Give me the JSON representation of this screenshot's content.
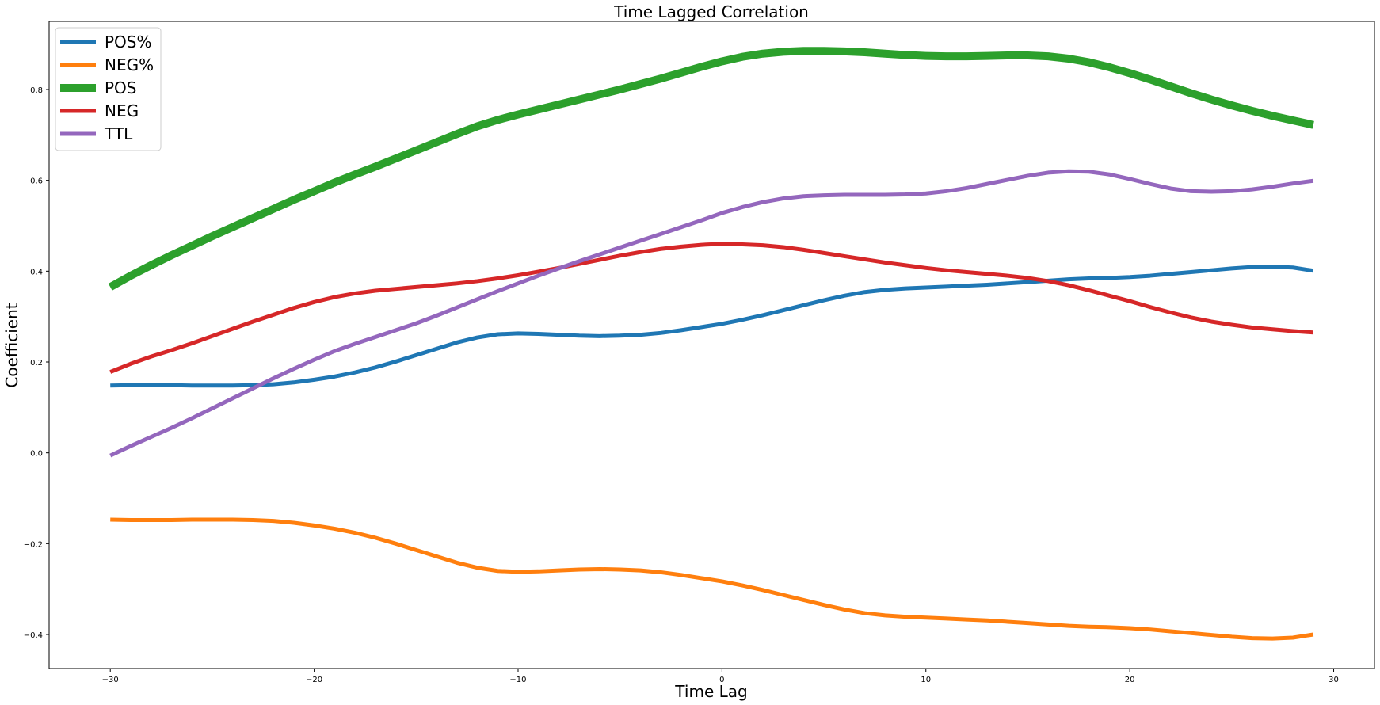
{
  "chart_data": {
    "type": "line",
    "title": "Time Lagged Correlation",
    "xlabel": "Time Lag",
    "ylabel": "Coefficient",
    "xlim": [
      -33,
      32
    ],
    "ylim": [
      -0.475,
      0.95
    ],
    "xticks": [
      -30,
      -20,
      -10,
      0,
      10,
      20,
      30
    ],
    "xtick_labels": [
      "−30",
      "−20",
      "−10",
      "0",
      "10",
      "20",
      "30"
    ],
    "yticks": [
      -0.4,
      -0.2,
      0.0,
      0.2,
      0.4,
      0.6,
      0.8
    ],
    "ytick_labels": [
      "−0.4",
      "−0.2",
      "0.0",
      "0.2",
      "0.4",
      "0.6",
      "0.8"
    ],
    "grid": false,
    "legend_position": "top-left",
    "x": [
      -30,
      -29,
      -28,
      -27,
      -26,
      -25,
      -24,
      -23,
      -22,
      -21,
      -20,
      -19,
      -18,
      -17,
      -16,
      -15,
      -14,
      -13,
      -12,
      -11,
      -10,
      -9,
      -8,
      -7,
      -6,
      -5,
      -4,
      -3,
      -2,
      -1,
      0,
      1,
      2,
      3,
      4,
      5,
      6,
      7,
      8,
      9,
      10,
      11,
      12,
      13,
      14,
      15,
      16,
      17,
      18,
      19,
      20,
      21,
      22,
      23,
      24,
      25,
      26,
      27,
      28,
      29
    ],
    "series": [
      {
        "name": "POS%",
        "color": "#1f77b4",
        "width": 5,
        "values": [
          0.148,
          0.149,
          0.149,
          0.149,
          0.148,
          0.148,
          0.148,
          0.149,
          0.151,
          0.155,
          0.161,
          0.168,
          0.177,
          0.188,
          0.201,
          0.215,
          0.229,
          0.243,
          0.254,
          0.261,
          0.263,
          0.262,
          0.26,
          0.258,
          0.257,
          0.258,
          0.26,
          0.264,
          0.27,
          0.277,
          0.284,
          0.293,
          0.303,
          0.314,
          0.325,
          0.336,
          0.346,
          0.354,
          0.359,
          0.362,
          0.364,
          0.366,
          0.368,
          0.37,
          0.373,
          0.376,
          0.379,
          0.382,
          0.384,
          0.385,
          0.387,
          0.39,
          0.394,
          0.398,
          0.402,
          0.406,
          0.409,
          0.41,
          0.408,
          0.401
        ]
      },
      {
        "name": "NEG%",
        "color": "#ff7f0e",
        "width": 5,
        "values": [
          -0.147,
          -0.148,
          -0.148,
          -0.148,
          -0.147,
          -0.147,
          -0.147,
          -0.148,
          -0.15,
          -0.154,
          -0.16,
          -0.167,
          -0.176,
          -0.187,
          -0.2,
          -0.214,
          -0.228,
          -0.242,
          -0.253,
          -0.26,
          -0.262,
          -0.261,
          -0.259,
          -0.257,
          -0.256,
          -0.257,
          -0.259,
          -0.263,
          -0.269,
          -0.276,
          -0.283,
          -0.292,
          -0.302,
          -0.313,
          -0.324,
          -0.335,
          -0.345,
          -0.353,
          -0.358,
          -0.361,
          -0.363,
          -0.365,
          -0.367,
          -0.369,
          -0.372,
          -0.375,
          -0.378,
          -0.381,
          -0.383,
          -0.384,
          -0.386,
          -0.389,
          -0.393,
          -0.397,
          -0.401,
          -0.405,
          -0.408,
          -0.409,
          -0.407,
          -0.4
        ]
      },
      {
        "name": "POS",
        "color": "#2ca02c",
        "width": 10,
        "values": [
          0.365,
          0.39,
          0.413,
          0.435,
          0.456,
          0.477,
          0.497,
          0.517,
          0.537,
          0.557,
          0.576,
          0.595,
          0.613,
          0.63,
          0.648,
          0.666,
          0.684,
          0.702,
          0.719,
          0.733,
          0.745,
          0.756,
          0.767,
          0.778,
          0.789,
          0.8,
          0.812,
          0.824,
          0.837,
          0.85,
          0.862,
          0.872,
          0.879,
          0.883,
          0.885,
          0.885,
          0.884,
          0.882,
          0.879,
          0.876,
          0.874,
          0.873,
          0.873,
          0.874,
          0.875,
          0.875,
          0.873,
          0.868,
          0.86,
          0.849,
          0.836,
          0.822,
          0.807,
          0.792,
          0.778,
          0.765,
          0.753,
          0.742,
          0.732,
          0.722
        ]
      },
      {
        "name": "NEG",
        "color": "#d62728",
        "width": 5,
        "values": [
          0.178,
          0.196,
          0.212,
          0.226,
          0.241,
          0.257,
          0.273,
          0.289,
          0.304,
          0.319,
          0.332,
          0.343,
          0.351,
          0.357,
          0.361,
          0.365,
          0.369,
          0.373,
          0.378,
          0.384,
          0.391,
          0.399,
          0.407,
          0.416,
          0.425,
          0.434,
          0.442,
          0.449,
          0.454,
          0.458,
          0.46,
          0.459,
          0.457,
          0.453,
          0.447,
          0.44,
          0.433,
          0.426,
          0.419,
          0.413,
          0.407,
          0.402,
          0.398,
          0.394,
          0.39,
          0.385,
          0.378,
          0.369,
          0.358,
          0.346,
          0.334,
          0.321,
          0.309,
          0.298,
          0.289,
          0.282,
          0.276,
          0.272,
          0.268,
          0.265
        ]
      },
      {
        "name": "TTL",
        "color": "#9467bd",
        "width": 5,
        "values": [
          -0.006,
          0.015,
          0.035,
          0.055,
          0.076,
          0.098,
          0.12,
          0.142,
          0.164,
          0.185,
          0.205,
          0.224,
          0.24,
          0.255,
          0.27,
          0.285,
          0.302,
          0.32,
          0.338,
          0.356,
          0.373,
          0.39,
          0.406,
          0.422,
          0.437,
          0.452,
          0.467,
          0.482,
          0.497,
          0.512,
          0.528,
          0.541,
          0.552,
          0.56,
          0.565,
          0.567,
          0.568,
          0.568,
          0.568,
          0.569,
          0.571,
          0.576,
          0.583,
          0.592,
          0.601,
          0.61,
          0.617,
          0.62,
          0.619,
          0.613,
          0.603,
          0.592,
          0.582,
          0.576,
          0.575,
          0.576,
          0.58,
          0.586,
          0.593,
          0.599
        ]
      }
    ]
  }
}
